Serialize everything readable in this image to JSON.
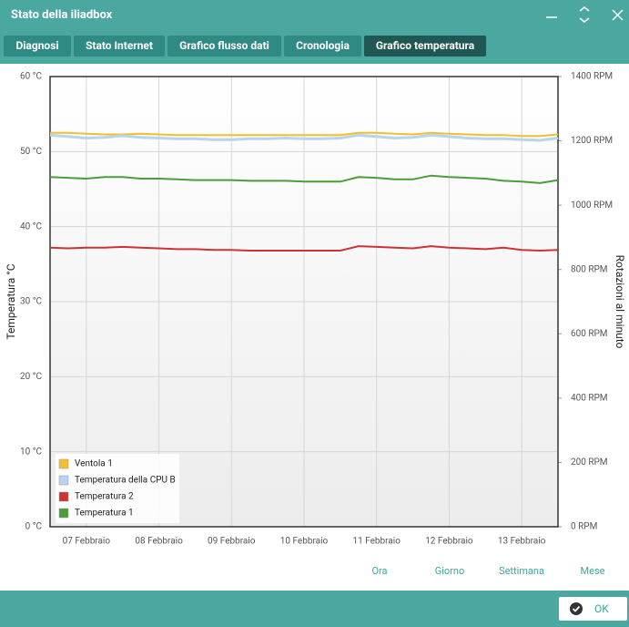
{
  "header": {
    "title": "Stato della iliadbox"
  },
  "tabs": [
    "Diagnosi",
    "Stato Internet",
    "Grafico flusso dati",
    "Cronologia",
    "Grafico temperatura"
  ],
  "chart_data": {
    "type": "line",
    "y_label": "Temperatura °C",
    "y2_label": "Rotazioni al minuto",
    "categories": [
      null,
      null,
      "07 Febbraio",
      null,
      null,
      null,
      "08 Febbraio",
      null,
      null,
      null,
      "09 Febbraio",
      null,
      null,
      null,
      "10 Febbraio",
      null,
      null,
      null,
      "11 Febbraio",
      null,
      null,
      null,
      "12 Febbraio",
      null,
      null,
      null,
      "13 Febbraio",
      null,
      null
    ],
    "ylim": [
      0,
      60
    ],
    "yticks": [
      {
        "value": 0,
        "label": "0 °C"
      },
      {
        "value": 10,
        "label": "10 °C"
      },
      {
        "value": 20,
        "label": "20 °C"
      },
      {
        "value": 30,
        "label": "30 °C"
      },
      {
        "value": 40,
        "label": "40 °C"
      },
      {
        "value": 50,
        "label": "50 °C"
      },
      {
        "value": 60,
        "label": "60 °C"
      }
    ],
    "y2lim": [
      0,
      1400
    ],
    "y2ticks": [
      {
        "value": 0,
        "label": "0 RPM"
      },
      {
        "value": 200,
        "label": "200 RPM"
      },
      {
        "value": 400,
        "label": "400 RPM"
      },
      {
        "value": 600,
        "label": "600 RPM"
      },
      {
        "value": 800,
        "label": "800 RPM"
      },
      {
        "value": 1000,
        "label": "1000 RPM"
      },
      {
        "value": 1200,
        "label": "1200 RPM"
      },
      {
        "value": 1400,
        "label": "1400 RPM"
      }
    ],
    "grid": true,
    "legend": "lower left",
    "series": [
      {
        "name": "Ventola 1",
        "color": "#f0c030",
        "axis": "y2",
        "values": [
          1225,
          1225,
          1222,
          1220,
          1220,
          1222,
          1220,
          1218,
          1218,
          1218,
          1218,
          1218,
          1218,
          1218,
          1218,
          1218,
          1218,
          1225,
          1225,
          1222,
          1220,
          1225,
          1222,
          1220,
          1218,
          1218,
          1215,
          1215,
          1220
        ]
      },
      {
        "name": "Temperatura della CPU B",
        "color": "#b8d4ee",
        "values": [
          52.2,
          52.0,
          51.8,
          51.9,
          52.1,
          51.9,
          51.8,
          51.7,
          51.7,
          51.6,
          51.6,
          51.7,
          51.7,
          51.8,
          51.7,
          51.7,
          51.8,
          52.2,
          52.0,
          51.8,
          51.9,
          52.2,
          52.0,
          51.8,
          51.7,
          51.7,
          51.6,
          51.5,
          51.8
        ]
      },
      {
        "name": "Temperatura 2",
        "color": "#cc3333",
        "values": [
          37.2,
          37.1,
          37.2,
          37.2,
          37.3,
          37.2,
          37.1,
          37.0,
          37.0,
          36.9,
          36.9,
          36.8,
          36.8,
          36.8,
          36.8,
          36.8,
          36.8,
          37.4,
          37.3,
          37.2,
          37.1,
          37.4,
          37.2,
          37.1,
          37.0,
          37.2,
          36.9,
          36.8,
          36.9
        ]
      },
      {
        "name": "Temperatura 1",
        "color": "#4a9e3a",
        "values": [
          46.6,
          46.5,
          46.4,
          46.6,
          46.6,
          46.4,
          46.4,
          46.3,
          46.2,
          46.2,
          46.2,
          46.1,
          46.1,
          46.1,
          46.0,
          46.0,
          46.0,
          46.6,
          46.5,
          46.3,
          46.3,
          46.8,
          46.6,
          46.5,
          46.4,
          46.1,
          46.0,
          45.8,
          46.2
        ]
      }
    ]
  },
  "range_buttons": [
    "Ora",
    "Giorno",
    "Settimana",
    "Mese"
  ],
  "footer": {
    "ok": "OK"
  }
}
